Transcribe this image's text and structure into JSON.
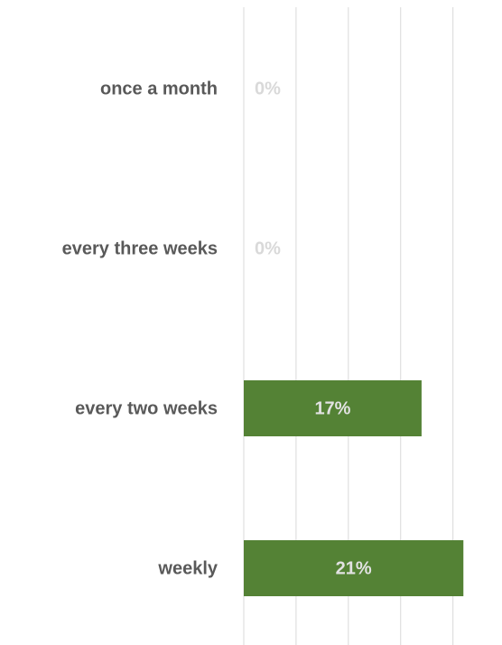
{
  "chart_data": {
    "type": "barh",
    "categories": [
      "once a month",
      "every three weeks",
      "every two weeks",
      "weekly"
    ],
    "values": [
      0,
      0,
      17,
      21
    ],
    "value_labels": [
      "0%",
      "0%",
      "17%",
      "21%"
    ],
    "color": "#548235",
    "xlim": [
      0,
      24
    ],
    "xticks": [
      0,
      5,
      10,
      15,
      20
    ],
    "grid": true
  }
}
